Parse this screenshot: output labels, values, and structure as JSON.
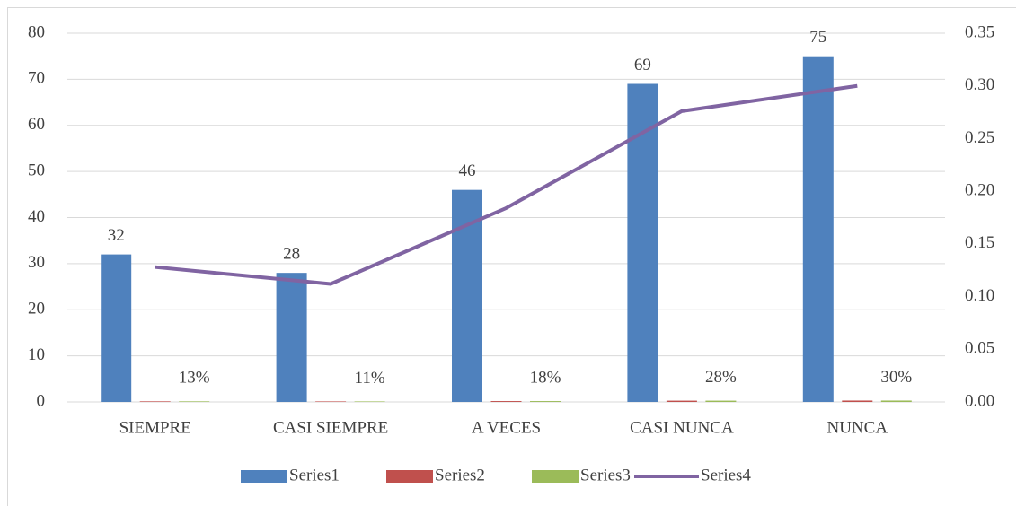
{
  "chart_data": {
    "type": "bar",
    "categories": [
      "SIEMPRE",
      "CASI SIEMPRE",
      "A VECES",
      "CASI NUNCA",
      "NUNCA"
    ],
    "series": [
      {
        "name": "Series1",
        "color": "#4f81bd",
        "values": [
          32,
          28,
          46,
          69,
          75
        ]
      },
      {
        "name": "Series2",
        "color": "#c0504d",
        "values": [
          0.128,
          0.112,
          0.184,
          0.276,
          0.3
        ]
      },
      {
        "name": "Series3",
        "color": "#9bbb59",
        "values": [
          0.128,
          0.112,
          0.184,
          0.276,
          0.3
        ],
        "value_labels": [
          "13%",
          "11%",
          "18%",
          "28%",
          "30%"
        ]
      },
      {
        "name": "Series4",
        "color": "#8064a2",
        "type": "line",
        "axis": "y2",
        "values": [
          0.128,
          0.112,
          0.184,
          0.276,
          0.3
        ]
      }
    ],
    "ylim": [
      0,
      80
    ],
    "yticks": [
      0,
      10,
      20,
      30,
      40,
      50,
      60,
      70,
      80
    ],
    "y2lim": [
      0,
      0.35
    ],
    "y2ticks": [
      {
        "value": 0,
        "label": "0.00"
      },
      {
        "value": 0.05,
        "label": "0.05"
      },
      {
        "value": 0.1,
        "label": "0.10"
      },
      {
        "value": 0.15,
        "label": "0.15"
      },
      {
        "value": 0.2,
        "label": "0.20"
      },
      {
        "value": 0.25,
        "label": "0.25"
      },
      {
        "value": 0.3,
        "label": "0.30"
      },
      {
        "value": 0.35,
        "label": "0.35"
      }
    ],
    "grid": true,
    "legend": "bottom"
  }
}
